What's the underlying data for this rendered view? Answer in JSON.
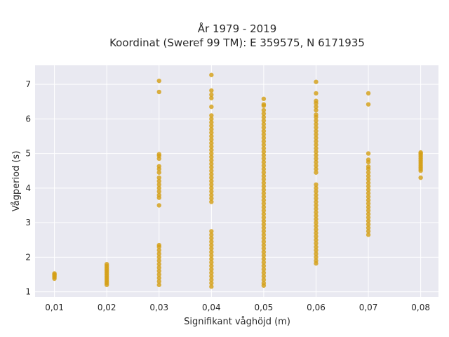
{
  "chart_data": {
    "type": "scatter",
    "title_line1": "År 1979 - 2019",
    "title_line2": "Koordinat (Sweref 99 TM): E 359575, N 6171935",
    "xlabel": "Signifikant våghöjd (m)",
    "ylabel": "Vågperiod (s)",
    "xlim": [
      0.0063,
      0.0834
    ],
    "ylim": [
      0.85,
      7.55
    ],
    "x_ticks": [
      0.01,
      0.02,
      0.03,
      0.04,
      0.05,
      0.06,
      0.07,
      0.08
    ],
    "x_tick_labels": [
      "0,01",
      "0,02",
      "0,03",
      "0,04",
      "0,05",
      "0,06",
      "0,07",
      "0,08"
    ],
    "y_ticks": [
      1,
      2,
      3,
      4,
      5,
      6,
      7
    ],
    "y_tick_labels": [
      "1",
      "2",
      "3",
      "4",
      "5",
      "6",
      "7"
    ],
    "grid": true,
    "marker_color": "#D4A017",
    "plot_bg_color": "#E9E9F1",
    "points": [
      {
        "x": 0.01,
        "y": [
          1.38,
          1.42,
          1.45,
          1.48,
          1.5,
          1.53
        ]
      },
      {
        "x": 0.02,
        "y": [
          1.2,
          1.25,
          1.3,
          1.35,
          1.4,
          1.45,
          1.5,
          1.55,
          1.6,
          1.65,
          1.7,
          1.75,
          1.8
        ]
      },
      {
        "x": 0.03,
        "y": [
          1.2,
          1.3,
          1.4,
          1.5,
          1.6,
          1.7,
          1.8,
          1.9,
          2.0,
          2.1,
          2.2,
          2.3,
          2.35,
          3.5,
          3.72,
          3.8,
          3.9,
          4.0,
          4.1,
          4.2,
          4.3,
          4.45,
          4.55,
          4.63,
          4.85,
          4.93,
          4.98,
          6.78,
          7.1
        ]
      },
      {
        "x": 0.04,
        "y": [
          1.15,
          1.25,
          1.35,
          1.45,
          1.55,
          1.65,
          1.75,
          1.85,
          1.95,
          2.05,
          2.15,
          2.25,
          2.35,
          2.45,
          2.55,
          2.65,
          2.75,
          3.6,
          3.7,
          3.8,
          3.9,
          4.0,
          4.1,
          4.2,
          4.3,
          4.4,
          4.5,
          4.6,
          4.7,
          4.8,
          4.9,
          5.0,
          5.1,
          5.2,
          5.3,
          5.4,
          5.5,
          5.6,
          5.7,
          5.8,
          5.9,
          6.0,
          6.1,
          6.35,
          6.6,
          6.7,
          6.82,
          7.27
        ]
      },
      {
        "x": 0.05,
        "y": [
          1.18,
          1.25,
          1.35,
          1.45,
          1.55,
          1.65,
          1.75,
          1.85,
          1.95,
          2.05,
          2.15,
          2.25,
          2.35,
          2.45,
          2.55,
          2.65,
          2.75,
          2.85,
          2.95,
          3.05,
          3.15,
          3.25,
          3.35,
          3.45,
          3.55,
          3.65,
          3.75,
          3.85,
          3.95,
          4.05,
          4.15,
          4.25,
          4.35,
          4.45,
          4.55,
          4.65,
          4.75,
          4.85,
          4.95,
          5.05,
          5.15,
          5.25,
          5.35,
          5.45,
          5.55,
          5.65,
          5.75,
          5.85,
          5.95,
          6.05,
          6.15,
          6.25,
          6.38,
          6.42,
          6.58
        ]
      },
      {
        "x": 0.06,
        "y": [
          1.82,
          1.9,
          2.0,
          2.1,
          2.2,
          2.3,
          2.4,
          2.5,
          2.6,
          2.7,
          2.8,
          2.9,
          3.0,
          3.1,
          3.2,
          3.3,
          3.4,
          3.5,
          3.6,
          3.7,
          3.8,
          3.9,
          4.0,
          4.1,
          4.45,
          4.55,
          4.65,
          4.75,
          4.85,
          4.95,
          5.05,
          5.15,
          5.25,
          5.35,
          5.45,
          5.55,
          5.65,
          5.75,
          5.85,
          5.95,
          6.05,
          6.12,
          6.25,
          6.35,
          6.45,
          6.52,
          6.74,
          7.07
        ]
      },
      {
        "x": 0.07,
        "y": [
          2.65,
          2.75,
          2.85,
          2.95,
          3.05,
          3.15,
          3.25,
          3.35,
          3.45,
          3.55,
          3.65,
          3.75,
          3.85,
          3.95,
          4.05,
          4.15,
          4.25,
          4.35,
          4.45,
          4.55,
          4.62,
          4.75,
          4.82,
          5.0,
          6.42,
          6.74
        ]
      },
      {
        "x": 0.08,
        "y": [
          4.3,
          4.5,
          4.55,
          4.6,
          4.65,
          4.7,
          4.75,
          4.8,
          4.85,
          4.9,
          4.95,
          5.0,
          5.03
        ]
      }
    ]
  }
}
